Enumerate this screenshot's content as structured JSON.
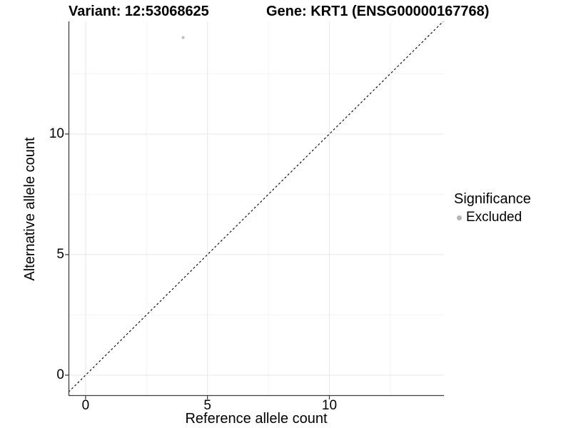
{
  "chart_data": {
    "type": "scatter",
    "title_left": "Variant: 12:53068625",
    "title_right": "Gene: KRT1 (ENSG00000167768)",
    "xlabel": "Reference allele count",
    "ylabel": "Alternative allele count",
    "xlim": [
      -0.7,
      14.7
    ],
    "ylim": [
      -0.86,
      14.67
    ],
    "x_ticks": {
      "major": [
        0,
        5,
        10
      ],
      "minor": [
        2.5,
        7.5,
        12.5
      ]
    },
    "y_ticks": {
      "major": [
        0,
        5,
        10
      ],
      "minor": [
        2.5,
        7.5,
        12.5
      ]
    },
    "grid": "on",
    "points": [
      {
        "x": 4,
        "y": 14,
        "series": "Excluded",
        "color": "#bebebe",
        "radius": 2
      }
    ],
    "identity_line": {
      "slope": 1,
      "intercept": 0,
      "style": "dashed",
      "color": "#000000"
    },
    "legend": {
      "position": "right",
      "title": "Significance",
      "items": [
        {
          "label": "Excluded",
          "color": "#b5b5b5"
        }
      ]
    },
    "colors": {
      "background": "#ffffff",
      "grid_major": "#e7e7e7",
      "grid_minor": "#f3f3f3",
      "axis_line": "#3f3f3f",
      "tick_mark": "#333333",
      "text": "#000000"
    }
  }
}
